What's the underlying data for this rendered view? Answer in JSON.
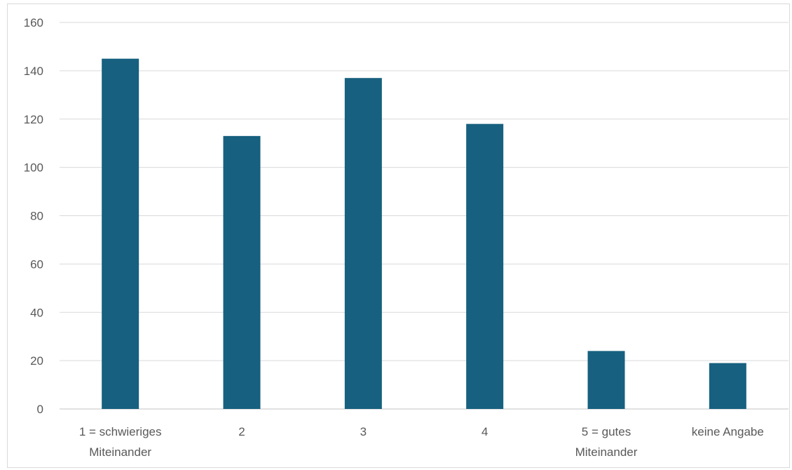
{
  "chart_data": {
    "type": "bar",
    "title": "",
    "xlabel": "",
    "ylabel": "",
    "categories": [
      [
        "1 = schwieriges",
        "Miteinander"
      ],
      [
        "2"
      ],
      [
        "3"
      ],
      [
        "4"
      ],
      [
        "5 = gutes",
        "Miteinander"
      ],
      [
        "keine Angabe"
      ]
    ],
    "values": [
      145,
      113,
      137,
      118,
      24,
      19
    ],
    "ylim": [
      0,
      160
    ],
    "yticks": [
      0,
      20,
      40,
      60,
      80,
      100,
      120,
      140,
      160
    ],
    "grid": true,
    "legend": "none",
    "colors": {
      "bar": "#17607f",
      "grid": "#d9d9d9",
      "axis": "#d9d9d9",
      "text": "#595959"
    }
  }
}
